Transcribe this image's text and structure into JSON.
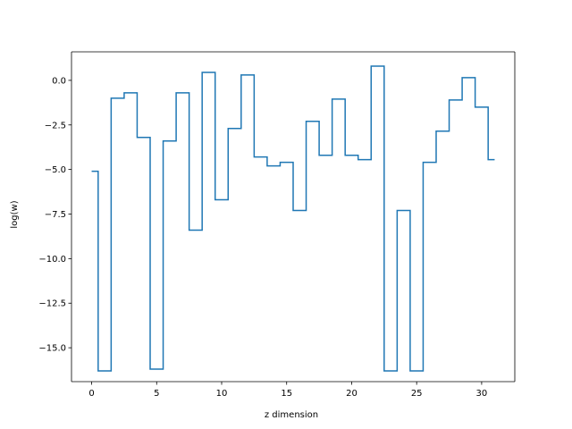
{
  "chart_data": {
    "type": "line",
    "drawstyle": "steps-mid",
    "title": "",
    "xlabel": "z dimension",
    "ylabel": "log(w)",
    "xlim": [
      -1.55,
      32.55
    ],
    "ylim": [
      -16.9,
      1.6
    ],
    "xticks": [
      0,
      5,
      10,
      15,
      20,
      25,
      30
    ],
    "yticks": [
      0.0,
      -2.5,
      -5.0,
      -7.5,
      -10.0,
      -12.5,
      -15.0
    ],
    "xtick_labels": [
      "0",
      "5",
      "10",
      "15",
      "20",
      "25",
      "30"
    ],
    "ytick_labels": [
      "0.0",
      "−2.5",
      "−5.0",
      "−7.5",
      "−10.0",
      "−12.5",
      "−15.0"
    ],
    "grid": false,
    "series": [
      {
        "color": "#1f77b4",
        "x": [
          0,
          1,
          2,
          3,
          4,
          5,
          6,
          7,
          8,
          9,
          10,
          11,
          12,
          13,
          14,
          15,
          16,
          17,
          18,
          19,
          20,
          21,
          22,
          23,
          24,
          25,
          26,
          27,
          28,
          29,
          30,
          31
        ],
        "y": [
          -5.1,
          -16.3,
          -1.0,
          -0.7,
          -3.2,
          -16.2,
          -3.4,
          -0.7,
          -8.4,
          0.45,
          -6.7,
          -2.7,
          0.3,
          -4.3,
          -4.8,
          -4.6,
          -7.3,
          -2.3,
          -4.2,
          -1.05,
          -4.2,
          -4.45,
          0.8,
          -16.3,
          -7.3,
          -16.3,
          -4.6,
          -2.85,
          -1.1,
          0.15,
          -1.5,
          -4.45
        ]
      }
    ]
  }
}
